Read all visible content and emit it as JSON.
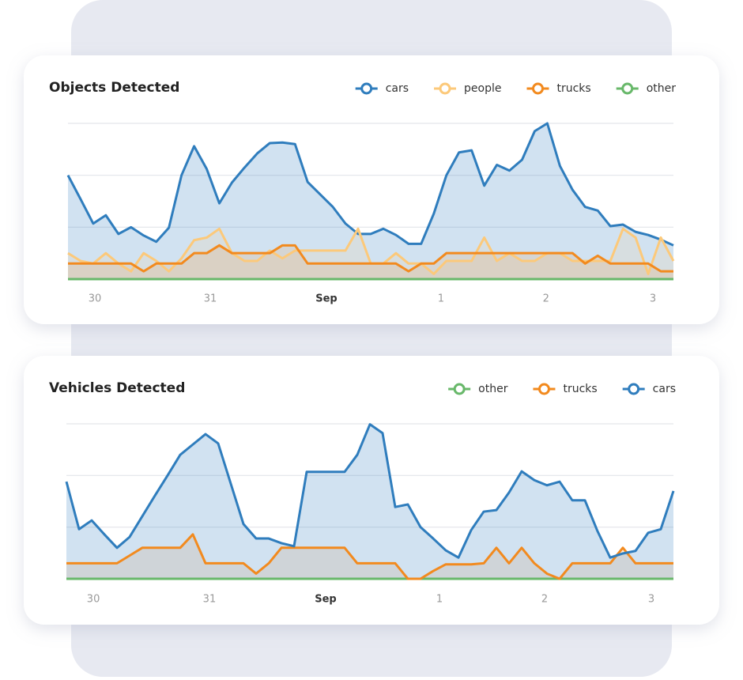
{
  "chart_data": [
    {
      "type": "line",
      "title": "Objects Detected",
      "xlim": [
        0,
        48
      ],
      "xticks": [
        {
          "value": 2.13,
          "label": "30"
        },
        {
          "value": 11.28,
          "label": "31"
        },
        {
          "value": 20.49,
          "label": "Sep"
        },
        {
          "value": 29.57,
          "label": "1"
        },
        {
          "value": 37.9,
          "label": "2"
        },
        {
          "value": 46.37,
          "label": "3"
        }
      ],
      "ylim": [
        0,
        3
      ],
      "yticks": [
        0,
        1,
        2,
        3
      ],
      "grid": true,
      "series": [
        {
          "name": "cars",
          "color": "#2f7dbd",
          "values": [
            2.0,
            1.54,
            1.07,
            1.23,
            0.87,
            1.0,
            0.84,
            0.72,
            0.99,
            2.0,
            2.56,
            2.12,
            1.46,
            1.86,
            2.15,
            2.42,
            2.62,
            2.63,
            2.6,
            1.87,
            1.63,
            1.39,
            1.07,
            0.87,
            0.87,
            0.97,
            0.85,
            0.68,
            0.68,
            1.26,
            2.0,
            2.44,
            2.48,
            1.8,
            2.2,
            2.09,
            2.3,
            2.85,
            3.0,
            2.18,
            1.72,
            1.39,
            1.32,
            1.02,
            1.05,
            0.91,
            0.85,
            0.76,
            0.65
          ]
        },
        {
          "name": "people",
          "color": "#fcc97a",
          "values": [
            0.5,
            0.35,
            0.3,
            0.5,
            0.3,
            0.15,
            0.5,
            0.35,
            0.15,
            0.4,
            0.75,
            0.8,
            0.97,
            0.5,
            0.35,
            0.35,
            0.55,
            0.4,
            0.55,
            0.55,
            0.55,
            0.55,
            0.55,
            0.97,
            0.3,
            0.3,
            0.5,
            0.3,
            0.3,
            0.1,
            0.35,
            0.35,
            0.35,
            0.8,
            0.35,
            0.5,
            0.35,
            0.35,
            0.5,
            0.5,
            0.35,
            0.35,
            0.35,
            0.35,
            0.97,
            0.8,
            0.1,
            0.8,
            0.35
          ]
        },
        {
          "name": "trucks",
          "color": "#f28a1e",
          "values": [
            0.3,
            0.3,
            0.3,
            0.3,
            0.3,
            0.3,
            0.15,
            0.3,
            0.3,
            0.3,
            0.5,
            0.5,
            0.65,
            0.5,
            0.5,
            0.5,
            0.5,
            0.65,
            0.65,
            0.3,
            0.3,
            0.3,
            0.3,
            0.3,
            0.3,
            0.3,
            0.3,
            0.15,
            0.3,
            0.3,
            0.5,
            0.5,
            0.5,
            0.5,
            0.5,
            0.5,
            0.5,
            0.5,
            0.5,
            0.5,
            0.5,
            0.3,
            0.45,
            0.3,
            0.3,
            0.3,
            0.3,
            0.15,
            0.15
          ]
        },
        {
          "name": "other",
          "color": "#68b86a",
          "values": [
            0,
            0,
            0,
            0,
            0,
            0,
            0,
            0,
            0,
            0,
            0,
            0,
            0,
            0,
            0,
            0,
            0,
            0,
            0,
            0,
            0,
            0,
            0,
            0,
            0,
            0,
            0,
            0,
            0,
            0,
            0,
            0,
            0,
            0,
            0,
            0,
            0,
            0,
            0,
            0,
            0,
            0,
            0,
            0,
            0,
            0,
            0,
            0,
            0
          ]
        }
      ]
    },
    {
      "type": "line",
      "title": "Vehicles Detected",
      "xlim": [
        0,
        48
      ],
      "xticks": [
        {
          "value": 2.13,
          "label": "30"
        },
        {
          "value": 11.31,
          "label": "31"
        },
        {
          "value": 20.5,
          "label": "Sep"
        },
        {
          "value": 29.5,
          "label": "1"
        },
        {
          "value": 37.81,
          "label": "2"
        },
        {
          "value": 46.25,
          "label": "3"
        }
      ],
      "ylim": [
        0,
        3
      ],
      "yticks": [
        0,
        1,
        2,
        3
      ],
      "grid": true,
      "series": [
        {
          "name": "other",
          "color": "#68b86a",
          "values": [
            0,
            0,
            0,
            0,
            0,
            0,
            0,
            0,
            0,
            0,
            0,
            0,
            0,
            0,
            0,
            0,
            0,
            0,
            0,
            0,
            0,
            0,
            0,
            0,
            0,
            0,
            0,
            0,
            0,
            0,
            0,
            0,
            0,
            0,
            0,
            0,
            0,
            0,
            0,
            0,
            0,
            0,
            0,
            0,
            0,
            0,
            0,
            0,
            0
          ]
        },
        {
          "name": "trucks",
          "color": "#f28a1e",
          "values": [
            0.3,
            0.3,
            0.3,
            0.3,
            0.3,
            0.45,
            0.6,
            0.6,
            0.6,
            0.6,
            0.86,
            0.3,
            0.3,
            0.3,
            0.3,
            0.1,
            0.3,
            0.6,
            0.6,
            0.6,
            0.6,
            0.6,
            0.6,
            0.3,
            0.3,
            0.3,
            0.3,
            0,
            0,
            0.15,
            0.28,
            0.28,
            0.28,
            0.3,
            0.6,
            0.3,
            0.6,
            0.3,
            0.1,
            0,
            0.3,
            0.3,
            0.3,
            0.3,
            0.6,
            0.3,
            0.3,
            0.3,
            0.3
          ]
        },
        {
          "name": "cars",
          "color": "#2f7dbd",
          "values": [
            1.88,
            0.96,
            1.13,
            0.86,
            0.6,
            0.81,
            1.21,
            1.61,
            2.0,
            2.4,
            2.6,
            2.8,
            2.62,
            1.84,
            1.06,
            0.78,
            0.78,
            0.69,
            0.63,
            2.07,
            2.07,
            2.07,
            2.07,
            2.4,
            2.99,
            2.82,
            1.39,
            1.44,
            1.0,
            0.78,
            0.55,
            0.41,
            0.94,
            1.3,
            1.33,
            1.67,
            2.08,
            1.91,
            1.81,
            1.88,
            1.52,
            1.52,
            0.92,
            0.41,
            0.49,
            0.54,
            0.89,
            0.96,
            1.7
          ]
        }
      ]
    }
  ]
}
